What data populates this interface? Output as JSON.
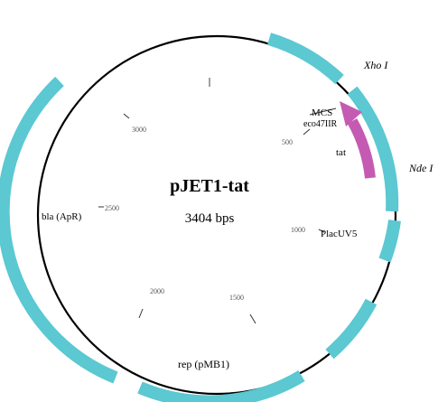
{
  "plasmid": {
    "name": "pJET1-tat",
    "size_label": "3404 bps",
    "backbone_color": "#000000",
    "feature_color": "#5bc8d2",
    "insert_color": "#c55ab3"
  },
  "features": [
    {
      "label": "Xho I",
      "kind": "site"
    },
    {
      "label": "MCS",
      "kind": "region"
    },
    {
      "label": "eco47IIR",
      "kind": "gene"
    },
    {
      "label": "tat",
      "kind": "insert"
    },
    {
      "label": "Nde I",
      "kind": "site"
    },
    {
      "label": "PlacUV5",
      "kind": "promoter"
    },
    {
      "label": "rep (pMB1)",
      "kind": "origin"
    },
    {
      "label": "bla (ApR)",
      "kind": "gene"
    }
  ],
  "scale_ticks": [
    "500",
    "1000",
    "1500",
    "2000",
    "2500",
    "3000"
  ]
}
